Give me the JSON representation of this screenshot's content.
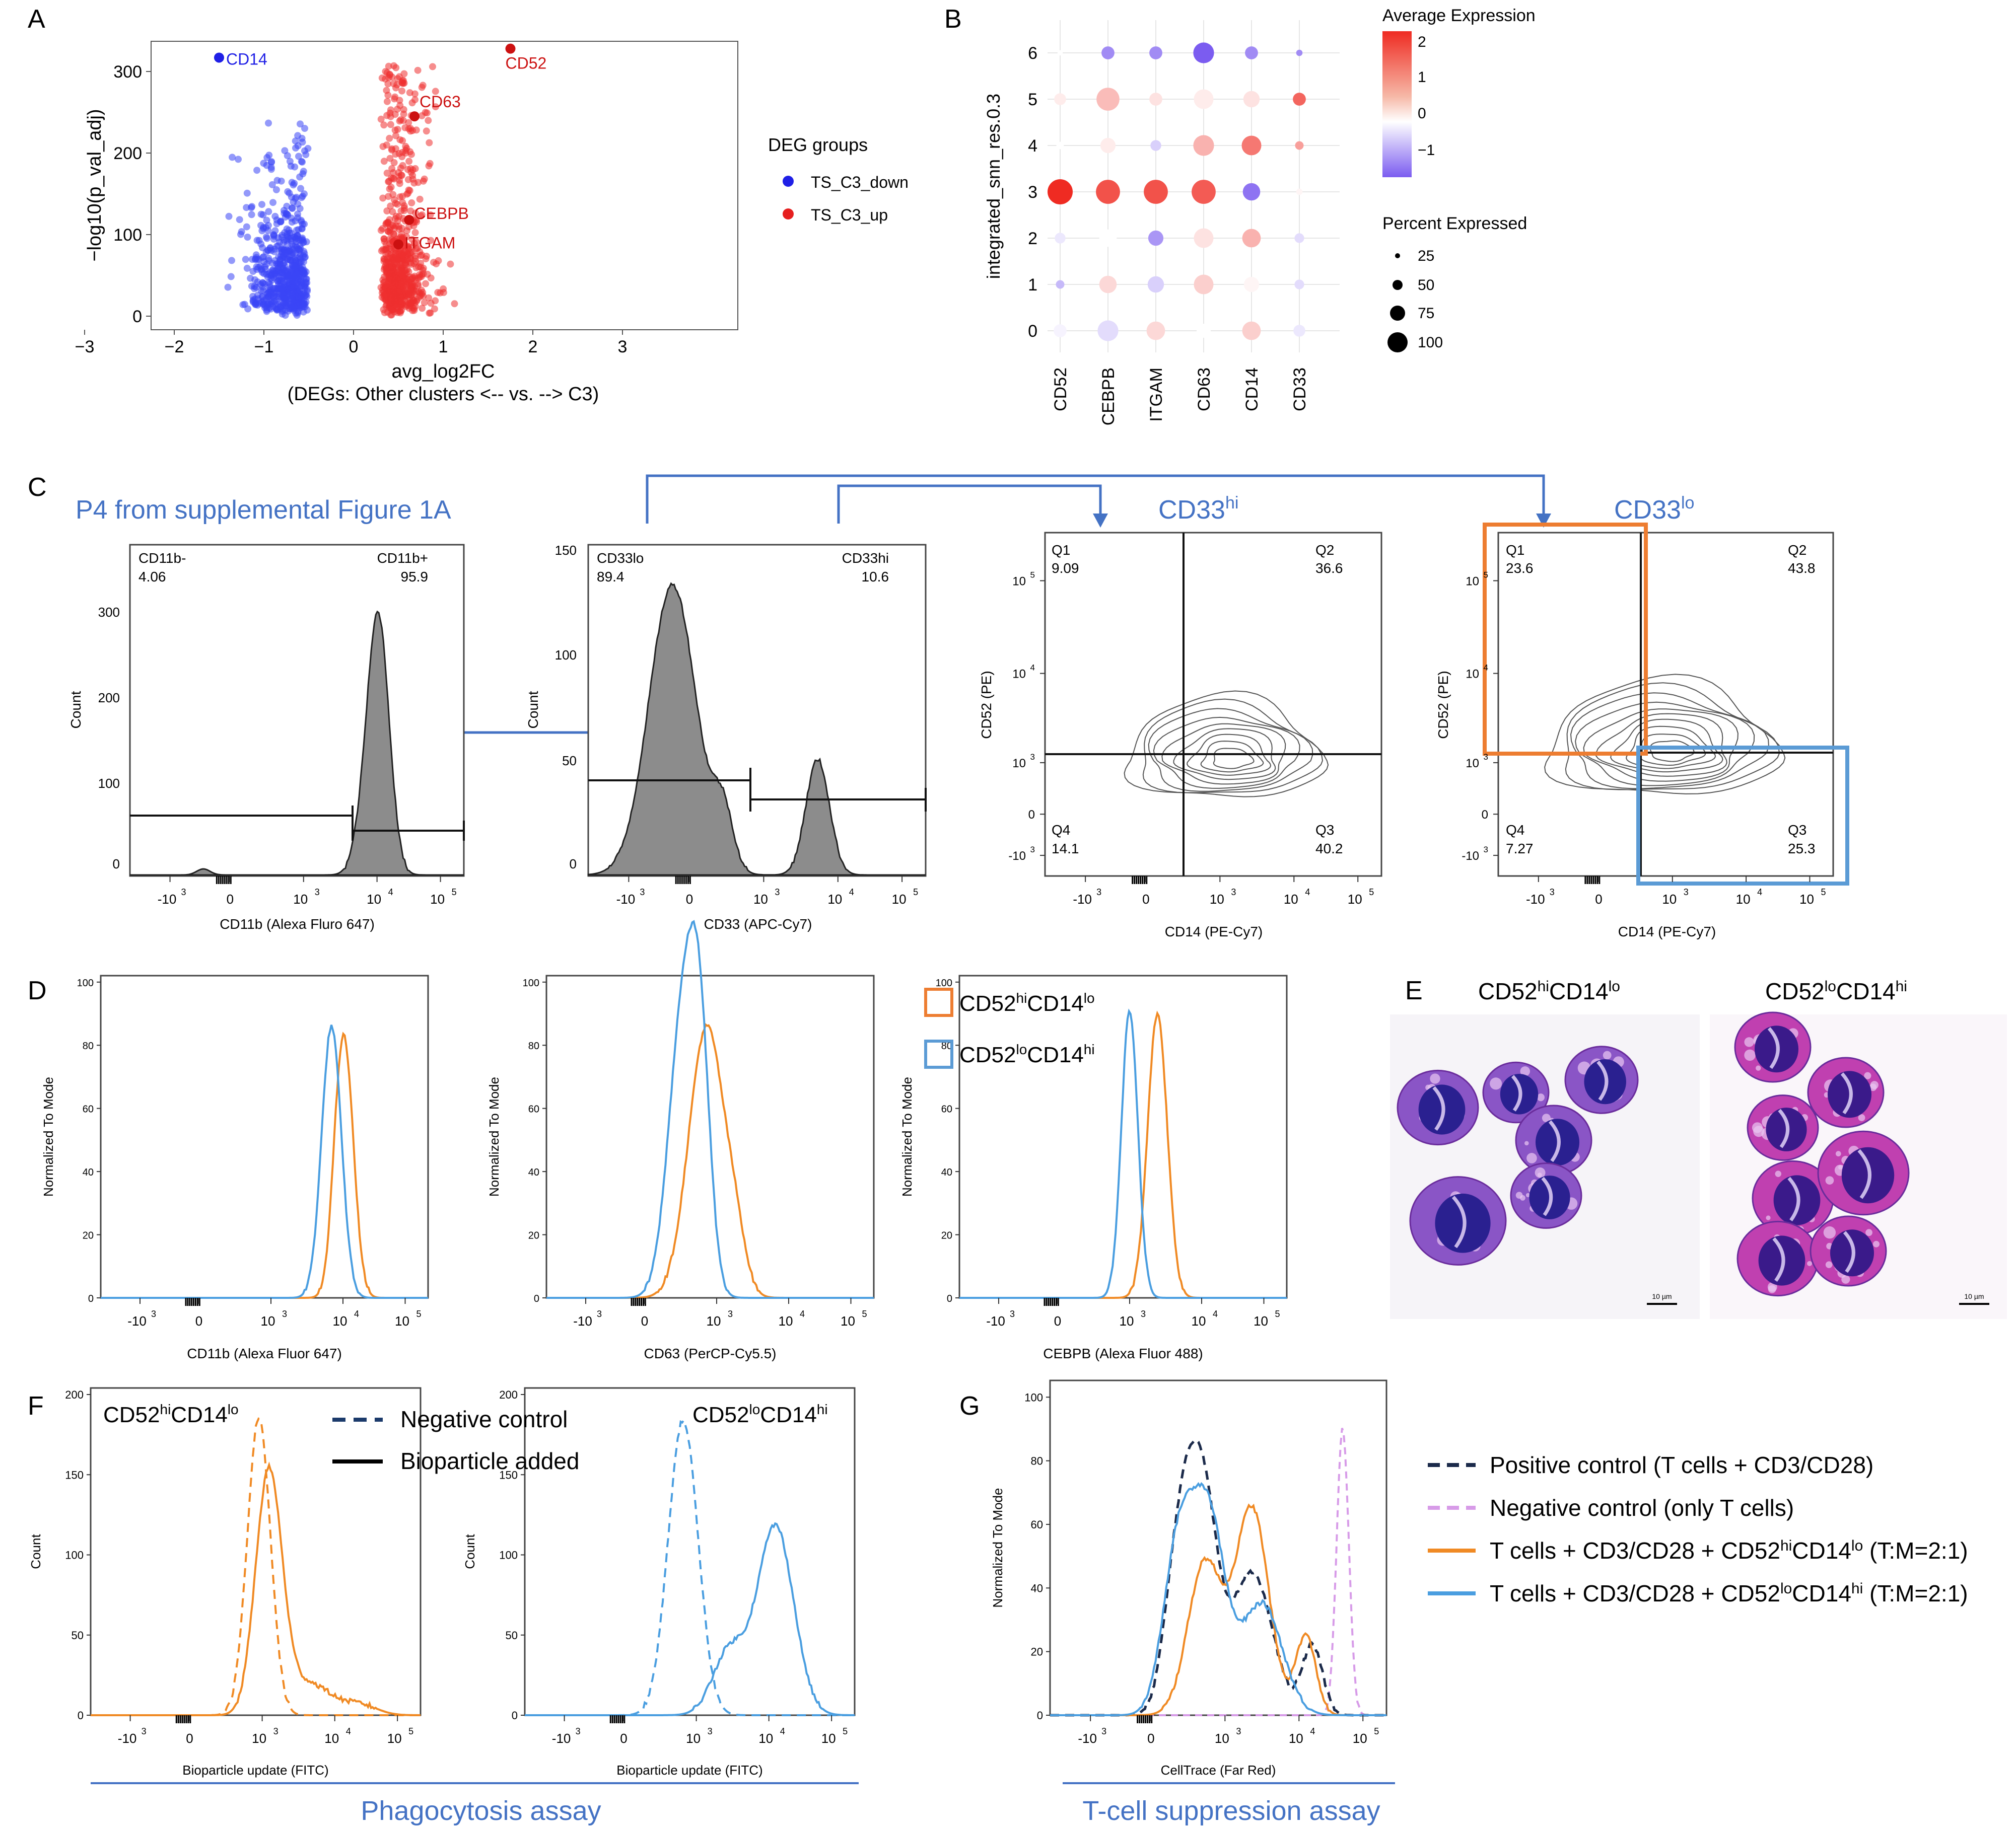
{
  "panels": {
    "A": {
      "letter": "A",
      "xlabel": "avg_log2FC",
      "xlabel2": "(DEGs: Other clusters <-- vs. --> C3)",
      "ylabel": "−log10(p_val_adj)",
      "xticks": [
        "−3",
        "−2",
        "−1",
        "0",
        "1",
        "2",
        "3"
      ],
      "yticks": [
        "0",
        "100",
        "200",
        "300"
      ],
      "legend_title": "DEG groups",
      "legend": [
        {
          "label": "TS_C3_down",
          "color": "#1f1fe6"
        },
        {
          "label": "TS_C3_up",
          "color": "#e61f1f"
        }
      ],
      "gene_labels": [
        "CD14",
        "CD52",
        "CD63",
        "CEBPB",
        "ITGAM"
      ]
    },
    "B": {
      "letter": "B",
      "ylabel": "integrated_snn_res.0.3",
      "xcats": [
        "CD52",
        "CEBPB",
        "ITGAM",
        "CD63",
        "CD14",
        "CD33"
      ],
      "ycats": [
        "0",
        "1",
        "2",
        "3",
        "4",
        "5",
        "6"
      ],
      "legend_expr_title": "Average Expression",
      "legend_expr_ticks": [
        "2",
        "1",
        "0",
        "−1"
      ],
      "legend_pct_title": "Percent Expressed",
      "legend_pct_ticks": [
        "25",
        "50",
        "75",
        "100"
      ]
    },
    "C": {
      "letter": "C",
      "source_note": "P4 from supplemental Figure 1A",
      "cd11b": {
        "gate_neg": "CD11b-",
        "gate_neg_val": "4.06",
        "gate_pos": "CD11b+",
        "gate_pos_val": "95.9",
        "xlabel": "CD11b (Alexa Fluro 647)",
        "ylabel": "Count",
        "yticks": [
          "0",
          "100",
          "200",
          "300"
        ]
      },
      "cd33": {
        "gate_lo": "CD33lo",
        "gate_lo_val": "89.4",
        "gate_hi": "CD33hi",
        "gate_hi_val": "10.6",
        "xlabel": "CD33 (APC-Cy7)",
        "ylabel": "Count",
        "yticks": [
          "0",
          "50",
          "100",
          "150"
        ]
      },
      "hi_title_base": "CD33",
      "hi_title_sup": "hi",
      "lo_title_base": "CD33",
      "lo_title_sup": "lo",
      "quad_hi": {
        "Q1": "9.09",
        "Q2": "36.6",
        "Q3": "40.2",
        "Q4": "14.1"
      },
      "quad_lo": {
        "Q1": "23.6",
        "Q2": "43.8",
        "Q3": "25.3",
        "Q4": "7.27"
      },
      "contour_xlabel": "CD14 (PE-Cy7)",
      "contour_ylabel": "CD52 (PE)",
      "quad_names": [
        "Q1",
        "Q2",
        "Q3",
        "Q4"
      ]
    },
    "D": {
      "letter": "D",
      "ylabel": "Normalized To Mode",
      "yticks": [
        "0",
        "20",
        "40",
        "60",
        "80",
        "100"
      ],
      "xlabels": [
        "CD11b (Alexa Fluor 647)",
        "CD63 (PerCP-Cy5.5)",
        "CEBPB (Alexa Fluor 488)"
      ],
      "legend": [
        {
          "base1": "CD52",
          "sup1": "hi",
          "base2": "CD14",
          "sup2": "lo",
          "color": "#f08a24"
        },
        {
          "base1": "CD52",
          "sup1": "lo",
          "base2": "CD14",
          "sup2": "hi",
          "color": "#4a9ee0"
        }
      ]
    },
    "E": {
      "letter": "E",
      "titles": [
        {
          "base1": "CD52",
          "sup1": "hi",
          "base2": "CD14",
          "sup2": "lo"
        },
        {
          "base1": "CD52",
          "sup1": "lo",
          "base2": "CD14",
          "sup2": "hi"
        }
      ],
      "scale_bar": "10 µm"
    },
    "F": {
      "letter": "F",
      "ylabel": "Count",
      "yticks": [
        "0",
        "50",
        "100",
        "150",
        "200"
      ],
      "xlabel": "Bioparticle update (FITC)",
      "titles": [
        {
          "base1": "CD52",
          "sup1": "hi",
          "base2": "CD14",
          "sup2": "lo"
        },
        {
          "base1": "CD52",
          "sup1": "lo",
          "base2": "CD14",
          "sup2": "hi"
        }
      ],
      "legend": [
        "Negative control",
        "Bioparticle added"
      ],
      "assay": "Phagocytosis assay"
    },
    "G": {
      "letter": "G",
      "ylabel": "Normalized To Mode",
      "yticks": [
        "0",
        "20",
        "40",
        "60",
        "80",
        "100"
      ],
      "xlabel": "CellTrace (Far Red)",
      "legend": [
        {
          "text": "Positive control (T cells + CD3/CD28)",
          "color": "#1b2a4a",
          "dash": true
        },
        {
          "text": "Negative control (only T cells)",
          "color": "#d79be8",
          "dash": true
        },
        {
          "pre": "T cells + CD3/CD28 + CD52",
          "sup1": "hi",
          "mid": "CD14",
          "sup2": "lo",
          "post": " (T:M=2:1)",
          "color": "#f08a24",
          "dash": false
        },
        {
          "pre": "T cells + CD3/CD28 + CD52",
          "sup1": "lo",
          "mid": "CD14",
          "sup2": "hi",
          "post": " (T:M=2:1)",
          "color": "#4a9ee0",
          "dash": false
        }
      ],
      "assay": "T-cell suppression assay"
    }
  },
  "log_ticks": {
    "neg3": "-10",
    "pos": "10",
    "e3": "3",
    "e4": "4",
    "e5": "5",
    "zero": "0"
  },
  "colors": {
    "blue_arrow": "#4472c4",
    "orange_gate": "#ed7d31",
    "blue_gate": "#5b9bd5",
    "hist_orange": "#f08a24",
    "hist_blue": "#4a9ee0",
    "assay_blue": "#4472c4"
  }
}
